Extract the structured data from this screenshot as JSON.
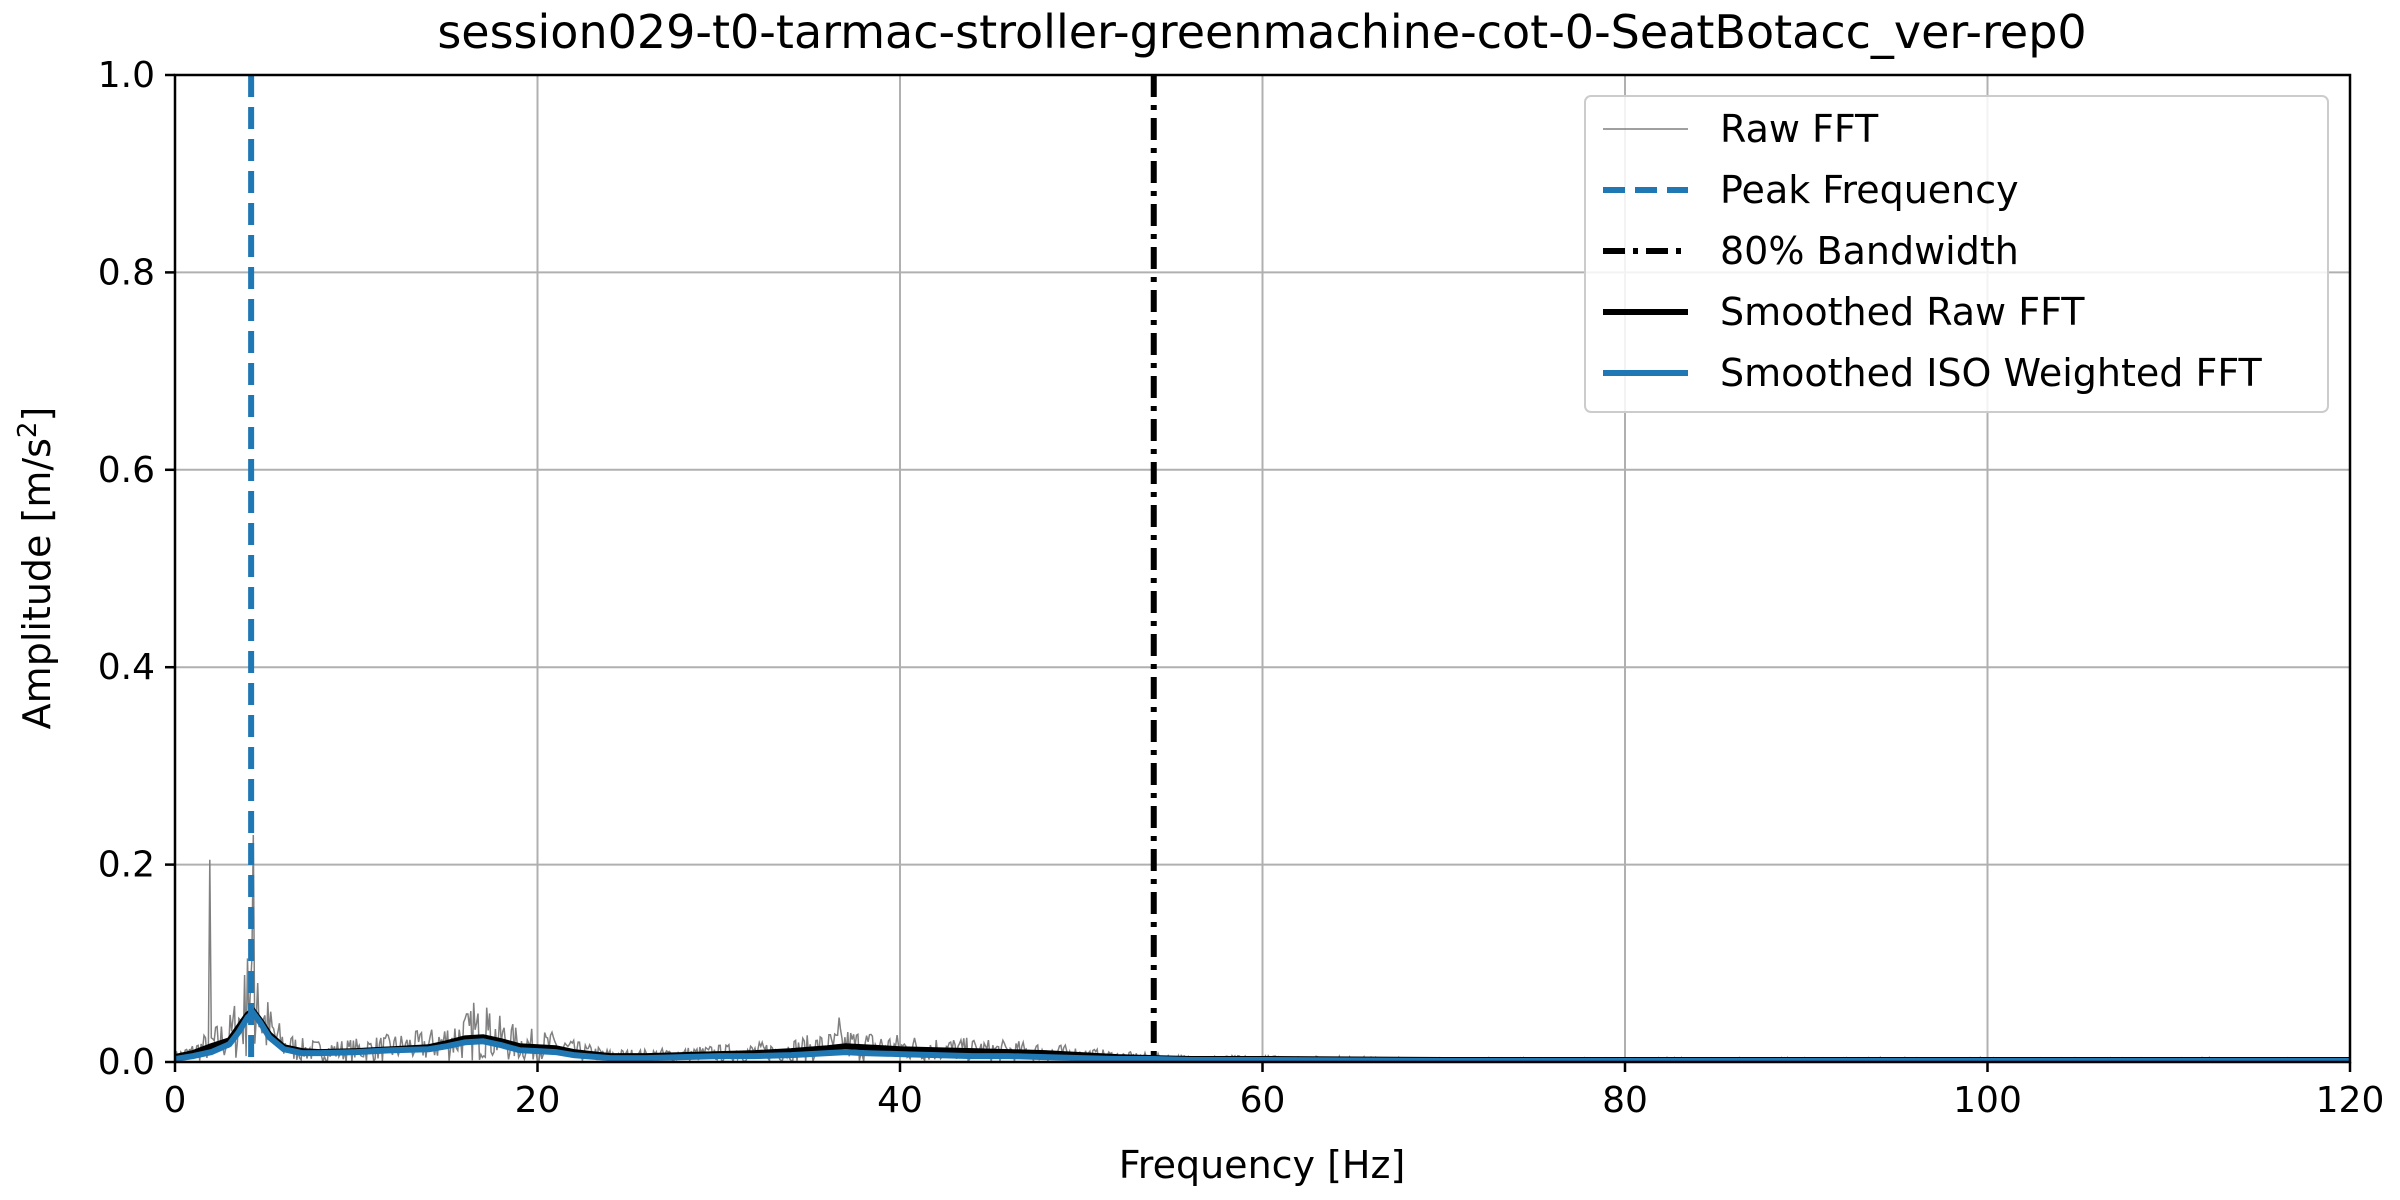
{
  "chart_data": {
    "type": "line",
    "title": "session029-t0-tarmac-stroller-greenmachine-cot-0-SeatBotacc_ver-rep0",
    "xlabel": "Frequency [Hz]",
    "ylabel_main": "Amplitude [m/s",
    "ylabel_sup": "2",
    "ylabel_close": "]",
    "xlim": [
      0,
      120
    ],
    "ylim": [
      0,
      1.0
    ],
    "x_ticks": [
      "0",
      "20",
      "40",
      "60",
      "80",
      "100",
      "120"
    ],
    "y_ticks": [
      "0.0",
      "0.2",
      "0.4",
      "0.6",
      "0.8",
      "1.0"
    ],
    "grid": true,
    "legend_position": "top-right",
    "colors": {
      "raw": "#808080",
      "peak": "#1f77b4",
      "bandwidth": "#000000",
      "smoothed_raw": "#000000",
      "smoothed_iso": "#1f77b4"
    },
    "legend": [
      {
        "label": "Raw FFT",
        "style": "raw"
      },
      {
        "label": "Peak Frequency",
        "style": "peak"
      },
      {
        "label": "80% Bandwidth",
        "style": "bandwidth"
      },
      {
        "label": "Smoothed Raw FFT",
        "style": "smoothed_raw"
      },
      {
        "label": "Smoothed ISO Weighted FFT",
        "style": "smoothed_iso"
      }
    ],
    "peak_frequency": 4.2,
    "bandwidth_80": 54.0,
    "raw_spikes": [
      {
        "x": 1.9,
        "y": 0.205
      },
      {
        "x": 4.0,
        "y": 0.105
      },
      {
        "x": 4.3,
        "y": 0.23
      },
      {
        "x": 4.6,
        "y": 0.08
      },
      {
        "x": 16.5,
        "y": 0.06
      },
      {
        "x": 17.2,
        "y": 0.055
      },
      {
        "x": 36.6,
        "y": 0.045
      }
    ],
    "series": [
      {
        "name": "Smoothed Raw FFT",
        "x": [
          0,
          1,
          2,
          3,
          3.5,
          4,
          4.3,
          4.7,
          5.2,
          6,
          7,
          8,
          10,
          12,
          14,
          15,
          16,
          17,
          18,
          19,
          20,
          21,
          22,
          24,
          26,
          28,
          30,
          32,
          34,
          36,
          37,
          38,
          40,
          42,
          44,
          46,
          48,
          50,
          52,
          54,
          56,
          60,
          70,
          80,
          90,
          100,
          110,
          120
        ],
        "values": [
          0.005,
          0.009,
          0.016,
          0.022,
          0.035,
          0.048,
          0.052,
          0.042,
          0.028,
          0.015,
          0.011,
          0.01,
          0.011,
          0.013,
          0.015,
          0.019,
          0.024,
          0.025,
          0.021,
          0.016,
          0.015,
          0.014,
          0.01,
          0.006,
          0.006,
          0.007,
          0.008,
          0.009,
          0.011,
          0.014,
          0.016,
          0.015,
          0.013,
          0.012,
          0.011,
          0.01,
          0.009,
          0.007,
          0.005,
          0.004,
          0.003,
          0.003,
          0.002,
          0.002,
          0.002,
          0.002,
          0.002,
          0.002
        ]
      },
      {
        "name": "Smoothed ISO Weighted FFT",
        "x": [
          0,
          1,
          2,
          3,
          3.5,
          4,
          4.3,
          4.7,
          5.2,
          6,
          7,
          8,
          10,
          12,
          14,
          15,
          16,
          17,
          18,
          19,
          20,
          21,
          22,
          24,
          26,
          28,
          30,
          32,
          34,
          36,
          37,
          38,
          40,
          42,
          44,
          46,
          48,
          50,
          52,
          54,
          56,
          60,
          70,
          80,
          90,
          100,
          110,
          120
        ],
        "values": [
          0.003,
          0.006,
          0.01,
          0.018,
          0.03,
          0.045,
          0.05,
          0.04,
          0.025,
          0.013,
          0.009,
          0.009,
          0.01,
          0.012,
          0.013,
          0.016,
          0.02,
          0.021,
          0.017,
          0.012,
          0.011,
          0.01,
          0.007,
          0.004,
          0.004,
          0.005,
          0.006,
          0.006,
          0.007,
          0.009,
          0.01,
          0.009,
          0.008,
          0.007,
          0.006,
          0.006,
          0.005,
          0.004,
          0.003,
          0.003,
          0.002,
          0.002,
          0.001,
          0.001,
          0.001,
          0.001,
          0.001,
          0.001
        ]
      }
    ]
  }
}
